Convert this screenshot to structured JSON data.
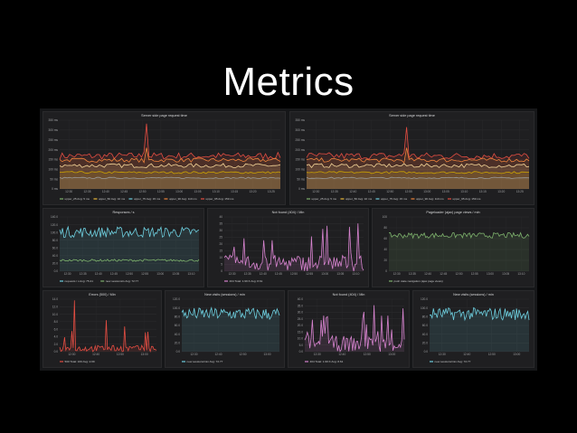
{
  "slide": {
    "title": "Metrics"
  },
  "colors": {
    "background": "#000000",
    "dashboard_bg": "#161719",
    "panel_bg": "#1f1f21",
    "red": "#e24d42",
    "orange": "#ef843c",
    "yellow": "#cca300",
    "cream": "#f4d598",
    "teal": "#6ed0e0",
    "purple": "#d683ce",
    "green": "#7eb26d"
  },
  "panels": [
    {
      "title": "Server side page request time",
      "yticks": [
        "350 ms",
        "300 ms",
        "250 ms",
        "200 ms",
        "150 ms",
        "100 ms",
        "50 ms",
        "0 ms"
      ],
      "xticks": [
        "12:30",
        "12:35",
        "12:40",
        "12:45",
        "12:50",
        "12:55",
        "13:00",
        "13:05",
        "13:10",
        "13:15",
        "13:20",
        "13:25"
      ],
      "legend": [
        "upper_25  Avg: 5 ms",
        "upper_50  Avg: 10 ms",
        "upper_75  Avg: 15 ms",
        "upper_90  Avg: 110 ms",
        "upper_95  Avg: 159 ms"
      ]
    },
    {
      "title": "Server side page request time",
      "yticks": [
        "350 ms",
        "300 ms",
        "250 ms",
        "200 ms",
        "150 ms",
        "100 ms",
        "50 ms",
        "0 ms"
      ],
      "xticks": [
        "12:30",
        "12:35",
        "12:40",
        "12:45",
        "12:50",
        "12:55",
        "13:00",
        "13:05",
        "13:10",
        "13:15",
        "13:20",
        "13:25"
      ],
      "legend": [
        "upper_25  Avg: 5 ms",
        "upper_50  Avg: 10 ms",
        "upper_75  Avg: 15 ms",
        "upper_90  Avg: 110 ms",
        "upper_95  Avg: 159 ms"
      ]
    },
    {
      "title": "Responses / s",
      "yticks": [
        "140.0",
        "120.0",
        "100.0",
        "80.0",
        "60.0",
        "40.0",
        "20.0",
        "0.0"
      ],
      "xticks": [
        "12:30",
        "12:35",
        "12:40",
        "12:45",
        "12:50",
        "12:55",
        "13:00",
        "13:05",
        "13:10"
      ],
      "legend": [
        "requests / s  Avg: 75.21",
        "new sessions/s  Avg: 72.77"
      ]
    },
    {
      "title": "Not found (404) / Min",
      "yticks": [
        "40",
        "35",
        "30",
        "25",
        "20",
        "15",
        "10",
        "5",
        "0"
      ],
      "xticks": [
        "12:30",
        "12:35",
        "12:40",
        "12:45",
        "12:50",
        "12:55",
        "13:00",
        "13:05",
        "13:10"
      ],
      "legend": [
        "404  Total: 1.99 K  Avg: 8.61"
      ]
    },
    {
      "title": "Pageloader (ajax) page views / min",
      "yticks": [
        "100",
        "80",
        "60",
        "40",
        "20",
        "0"
      ],
      "xticks": [
        "12:30",
        "12:35",
        "12:40",
        "12:45",
        "12:50",
        "12:55",
        "13:00",
        "13:05",
        "13:10"
      ],
      "legend": [
        "push state navigation (ajax page views)"
      ]
    },
    {
      "title": "Errors (500) / Min",
      "yticks": [
        "14.0",
        "12.0",
        "10.0",
        "8.0",
        "6.0",
        "4.0",
        "2.0",
        "0.0"
      ],
      "xticks": [
        "12:30",
        "12:40",
        "12:50",
        "13:00"
      ],
      "legend": [
        "500  Total: 163  Avg: 2.09"
      ]
    },
    {
      "title": "New visits (sessions) / min",
      "yticks": [
        "120.0",
        "100.0",
        "80.0",
        "60.0",
        "40.0",
        "20.0",
        "0.0"
      ],
      "xticks": [
        "12:30",
        "12:40",
        "12:50",
        "13:00"
      ],
      "legend": [
        "new sessions/min  Avg: 72.77"
      ]
    },
    {
      "title": "Not found (404) / Min",
      "yticks": [
        "40.0",
        "35.0",
        "30.0",
        "25.0",
        "20.0",
        "15.0",
        "10.0",
        "5.0",
        "0.0"
      ],
      "xticks": [
        "12:30",
        "12:40",
        "12:50",
        "13:00"
      ],
      "legend": [
        "404  Total: 1.99 K  Avg: 8.61"
      ]
    },
    {
      "title": "New visits (sessions) / min",
      "yticks": [
        "120.0",
        "100.0",
        "80.0",
        "60.0",
        "40.0",
        "20.0",
        "0.0"
      ],
      "xticks": [
        "12:30",
        "12:40",
        "12:50",
        "13:00"
      ],
      "legend": [
        "new sessions/min  Avg: 72.77"
      ]
    }
  ]
}
